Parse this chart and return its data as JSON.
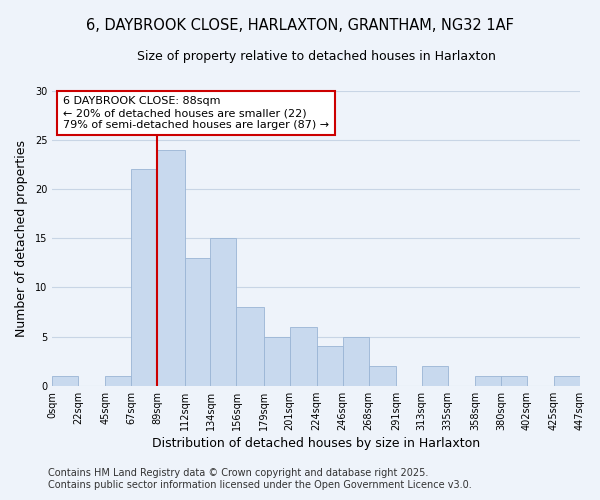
{
  "title": "6, DAYBROOK CLOSE, HARLAXTON, GRANTHAM, NG32 1AF",
  "subtitle": "Size of property relative to detached houses in Harlaxton",
  "xlabel": "Distribution of detached houses by size in Harlaxton",
  "ylabel": "Number of detached properties",
  "bin_edges": [
    0,
    22,
    45,
    67,
    89,
    112,
    134,
    156,
    179,
    201,
    224,
    246,
    268,
    291,
    313,
    335,
    358,
    380,
    402,
    425,
    447
  ],
  "bar_heights": [
    1,
    0,
    1,
    22,
    24,
    13,
    15,
    8,
    5,
    6,
    4,
    5,
    2,
    0,
    2,
    0,
    1,
    1,
    0,
    1
  ],
  "bar_color": "#c8d9ee",
  "bar_edge_color": "#9ab5d5",
  "grid_color": "#c8d5e5",
  "background_color": "#eef3fa",
  "plot_bg_color": "#eef3fa",
  "vline_x": 89,
  "vline_color": "#cc0000",
  "annotation_title": "6 DAYBROOK CLOSE: 88sqm",
  "annotation_line1": "← 20% of detached houses are smaller (22)",
  "annotation_line2": "79% of semi-detached houses are larger (87) →",
  "annotation_box_color": "#ffffff",
  "annotation_box_edge": "#cc0000",
  "tick_labels": [
    "0sqm",
    "22sqm",
    "45sqm",
    "67sqm",
    "89sqm",
    "112sqm",
    "134sqm",
    "156sqm",
    "179sqm",
    "201sqm",
    "224sqm",
    "246sqm",
    "268sqm",
    "291sqm",
    "313sqm",
    "335sqm",
    "358sqm",
    "380sqm",
    "402sqm",
    "425sqm",
    "447sqm"
  ],
  "ylim": [
    0,
    30
  ],
  "yticks": [
    0,
    5,
    10,
    15,
    20,
    25,
    30
  ],
  "footnote1": "Contains HM Land Registry data © Crown copyright and database right 2025.",
  "footnote2": "Contains public sector information licensed under the Open Government Licence v3.0.",
  "title_fontsize": 10.5,
  "subtitle_fontsize": 9,
  "axis_label_fontsize": 9,
  "tick_fontsize": 7,
  "annotation_fontsize": 8,
  "footnote_fontsize": 7
}
